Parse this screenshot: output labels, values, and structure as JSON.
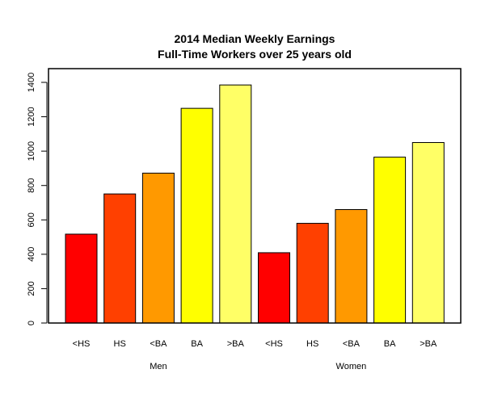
{
  "chart_data": {
    "type": "bar",
    "title": "2014 Median Weekly Earnings",
    "subtitle": "Full-Time Workers over 25 years old",
    "xlabel": "",
    "ylabel": "",
    "ylim": [
      0,
      1450
    ],
    "yticks": [
      0,
      200,
      400,
      600,
      800,
      1000,
      1200,
      1400
    ],
    "ytick_labels": [
      "0",
      "200",
      "400",
      "600",
      "800",
      "1000",
      "1200",
      "1400"
    ],
    "grid": false,
    "legend": "none",
    "categories": [
      "<HS",
      "HS",
      "<BA",
      "BA",
      ">BA",
      "<HS",
      "HS",
      "<BA",
      "BA",
      ">BA"
    ],
    "values": [
      517,
      751,
      872,
      1249,
      1385,
      409,
      580,
      660,
      965,
      1050
    ],
    "colors": [
      "#FF0000",
      "#FF4000",
      "#FF9900",
      "#FFFF00",
      "#FFFF66",
      "#FF0000",
      "#FF4000",
      "#FF9900",
      "#FFFF00",
      "#FFFF66"
    ],
    "groups": [
      {
        "name": "Men",
        "start": 0,
        "end": 4
      },
      {
        "name": "Women",
        "start": 5,
        "end": 9
      }
    ]
  }
}
